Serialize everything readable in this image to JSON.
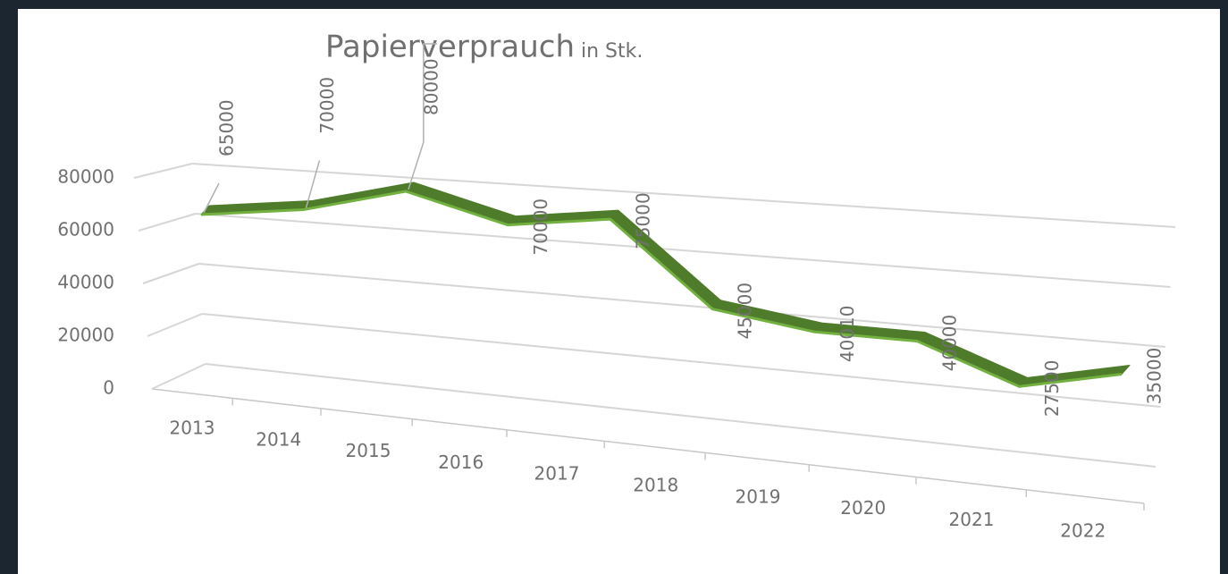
{
  "chart_data": {
    "type": "line3d",
    "title": "Papierverprauch",
    "subtitle": "in Stk.",
    "categories": [
      "2013",
      "2014",
      "2015",
      "2016",
      "2017",
      "2018",
      "2019",
      "2020",
      "2021",
      "2022"
    ],
    "series": [
      {
        "name": "Papierverprauch",
        "color": "#5b8f35",
        "values": [
          65000,
          70000,
          80000,
          70000,
          75000,
          45000,
          40010,
          40000,
          27500,
          35000
        ]
      }
    ],
    "ylim": [
      0,
      80000
    ],
    "yticks": [
      0,
      20000,
      40000,
      60000,
      80000
    ],
    "grid": true,
    "data_labels": true
  }
}
